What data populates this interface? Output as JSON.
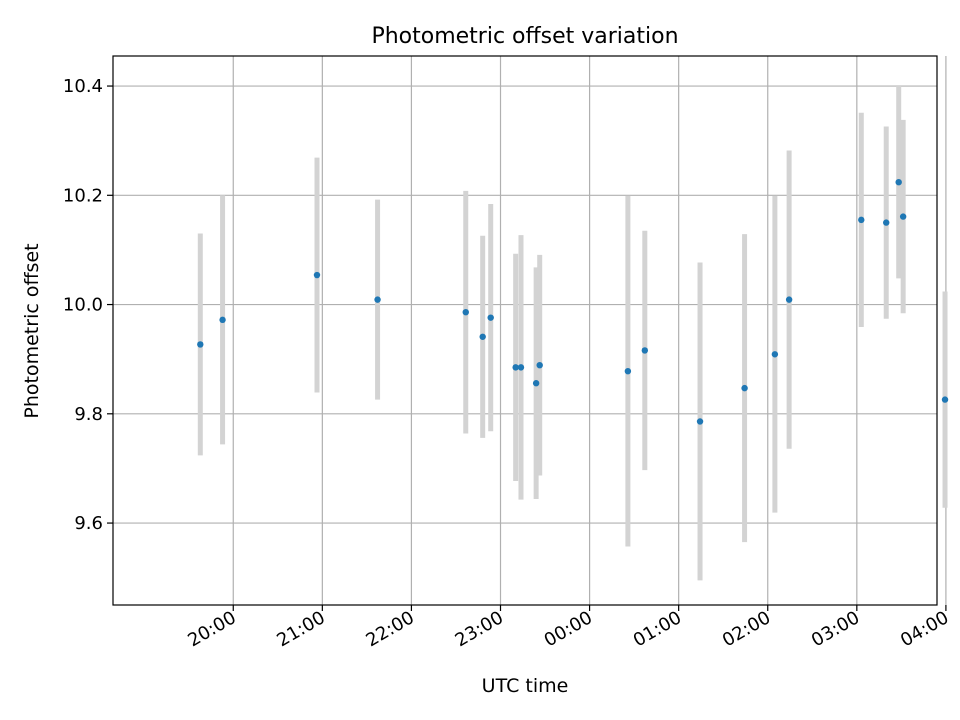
{
  "chart_data": {
    "type": "scatter",
    "title": "Photometric offset variation",
    "xlabel": "UTC time",
    "ylabel": "Photometric offset",
    "x_unit": "UTC hours (values past midnight exceed 24)",
    "xlim": [
      18.65,
      27.9
    ],
    "ylim": [
      9.45,
      10.455
    ],
    "grid": true,
    "legend": "none",
    "colors": {
      "point": "#1f77b4",
      "errorbar": "#d3d3d3"
    },
    "x_ticks": [
      {
        "value": 20,
        "label": "20:00"
      },
      {
        "value": 21,
        "label": "21:00"
      },
      {
        "value": 22,
        "label": "22:00"
      },
      {
        "value": 23,
        "label": "23:00"
      },
      {
        "value": 24,
        "label": "00:00"
      },
      {
        "value": 25,
        "label": "01:00"
      },
      {
        "value": 26,
        "label": "02:00"
      },
      {
        "value": 27,
        "label": "03:00"
      },
      {
        "value": 28,
        "label": "04:00"
      }
    ],
    "y_ticks": [
      {
        "value": 9.6,
        "label": "9.6"
      },
      {
        "value": 9.8,
        "label": "9.8"
      },
      {
        "value": 10.0,
        "label": "10.0"
      },
      {
        "value": 10.2,
        "label": "10.2"
      },
      {
        "value": 10.4,
        "label": "10.4"
      }
    ],
    "points": [
      {
        "x": 19.63,
        "y": 9.927,
        "err": 0.203
      },
      {
        "x": 19.88,
        "y": 9.972,
        "err": 0.228
      },
      {
        "x": 20.94,
        "y": 10.054,
        "err": 0.215
      },
      {
        "x": 21.62,
        "y": 10.009,
        "err": 0.183
      },
      {
        "x": 22.61,
        "y": 9.986,
        "err": 0.222
      },
      {
        "x": 22.8,
        "y": 9.941,
        "err": 0.185
      },
      {
        "x": 22.89,
        "y": 9.976,
        "err": 0.208
      },
      {
        "x": 23.17,
        "y": 9.885,
        "err": 0.208
      },
      {
        "x": 23.23,
        "y": 9.885,
        "err": 0.242
      },
      {
        "x": 23.4,
        "y": 9.856,
        "err": 0.212
      },
      {
        "x": 23.44,
        "y": 9.889,
        "err": 0.202
      },
      {
        "x": 24.43,
        "y": 9.878,
        "err": 0.321
      },
      {
        "x": 24.62,
        "y": 9.916,
        "err": 0.219
      },
      {
        "x": 25.24,
        "y": 9.786,
        "err": 0.291
      },
      {
        "x": 25.74,
        "y": 9.847,
        "err": 0.282
      },
      {
        "x": 26.08,
        "y": 9.909,
        "err": 0.29
      },
      {
        "x": 26.24,
        "y": 10.009,
        "err": 0.273
      },
      {
        "x": 27.05,
        "y": 10.155,
        "err": 0.196
      },
      {
        "x": 27.33,
        "y": 10.15,
        "err": 0.176
      },
      {
        "x": 27.47,
        "y": 10.224,
        "err": 0.176
      },
      {
        "x": 27.52,
        "y": 10.161,
        "err": 0.177
      },
      {
        "x": 27.99,
        "y": 9.826,
        "err": 0.198
      }
    ]
  }
}
